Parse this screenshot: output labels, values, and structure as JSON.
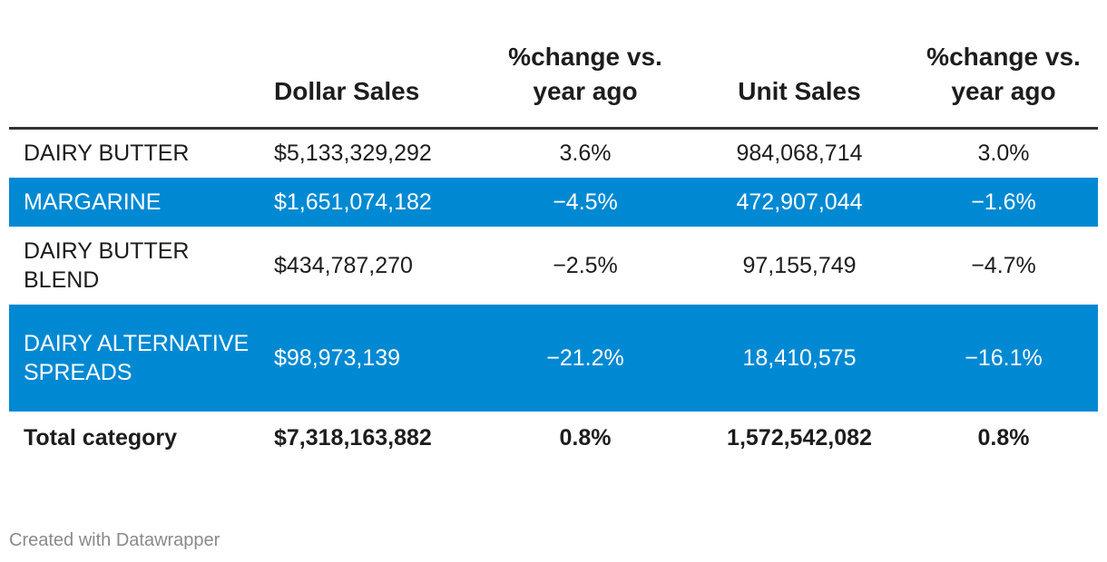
{
  "chart_data": {
    "type": "table",
    "columns": [
      "",
      "Dollar Sales",
      "%change vs. year ago",
      "Unit Sales",
      "%change vs. year ago"
    ],
    "rows": [
      {
        "category": "DAIRY BUTTER",
        "dollar_sales": "$5,133,329,292",
        "dollar_change": "3.6%",
        "unit_sales": "984,068,714",
        "unit_change": "3.0%",
        "highlight": false
      },
      {
        "category": "MARGARINE",
        "dollar_sales": "$1,651,074,182",
        "dollar_change": "−4.5%",
        "unit_sales": "472,907,044",
        "unit_change": "−1.6%",
        "highlight": true
      },
      {
        "category": "DAIRY BUTTER BLEND",
        "dollar_sales": "$434,787,270",
        "dollar_change": "−2.5%",
        "unit_sales": "97,155,749",
        "unit_change": "−4.7%",
        "highlight": false
      },
      {
        "category": "DAIRY ALTERNATIVE SPREADS",
        "dollar_sales": "$98,973,139",
        "dollar_change": "−21.2%",
        "unit_sales": "18,410,575",
        "unit_change": "−16.1%",
        "highlight": true
      }
    ],
    "total": {
      "category": "Total category",
      "dollar_sales": "$7,318,163,882",
      "dollar_change": "0.8%",
      "unit_sales": "1,572,542,082",
      "unit_change": "0.8%"
    },
    "highlight_color": "#0089d3",
    "text_color": "#1d1d1d"
  },
  "footer": {
    "credit": "Created with Datawrapper"
  }
}
